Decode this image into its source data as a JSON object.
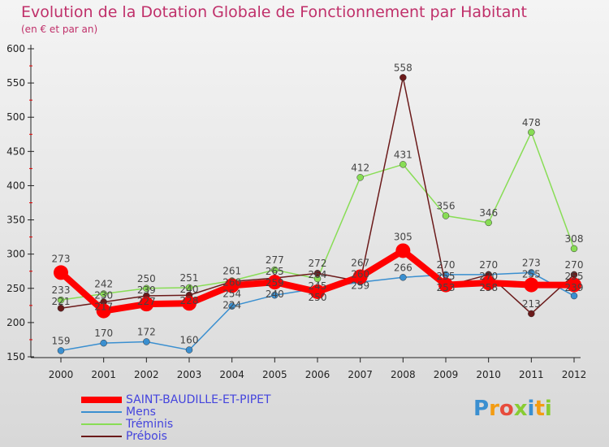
{
  "title": "Evolution de la Dotation Globale de Fonctionnement par Habitant",
  "subtitle": "(en € et par an)",
  "logo": "Proxiti",
  "chart_data": {
    "type": "line",
    "title": "Evolution de la Dotation Globale de Fonctionnement par Habitant",
    "ylabel": "(en € et par an)",
    "ylim": [
      150,
      600
    ],
    "yticks": [
      150,
      200,
      250,
      300,
      350,
      400,
      450,
      500,
      550,
      600
    ],
    "x": [
      "2000",
      "2001",
      "2002",
      "2003",
      "2004",
      "2005",
      "2006",
      "2007",
      "2008",
      "2009",
      "2010",
      "2011",
      "2012"
    ],
    "series": [
      {
        "name": "SAINT-BAUDILLE-ET-PIPET",
        "color": "#ff0000",
        "width": 8,
        "values": [
          273,
          217,
          227,
          228,
          254,
          259,
          245,
          267,
          305,
          255,
          258,
          255,
          255
        ]
      },
      {
        "name": "Mens",
        "color": "#3a8fd0",
        "width": 1.5,
        "values": [
          159,
          170,
          172,
          160,
          224,
          240,
          250,
          259,
          266,
          270,
          270,
          273,
          239
        ]
      },
      {
        "name": "Tréminis",
        "color": "#88dd55",
        "width": 1.5,
        "values": [
          233,
          242,
          250,
          251,
          261,
          277,
          264,
          412,
          431,
          356,
          346,
          478,
          308
        ]
      },
      {
        "name": "Prébois",
        "color": "#6b1a1a",
        "width": 1.5,
        "values": [
          221,
          230,
          239,
          240,
          260,
          265,
          272,
          260,
          558,
          253,
          270,
          213,
          270
        ]
      }
    ]
  }
}
